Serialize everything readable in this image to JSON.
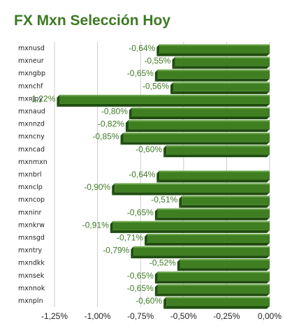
{
  "chart_data": {
    "type": "bar",
    "orientation": "horizontal",
    "title": "FX Mxn Selección Hoy",
    "categories": [
      "mxnusd",
      "mxneur",
      "mxngbp",
      "mxnchf",
      "mxnjpy",
      "mxnaud",
      "mxnnzd",
      "mxncny",
      "mxncad",
      "mxnmxn",
      "mxnbrl",
      "mxnclp",
      "mxncop",
      "mxninr",
      "mxnkrw",
      "mxnsgd",
      "mxntry",
      "mxndkk",
      "mxnsek",
      "mxnnok",
      "mxnpln"
    ],
    "values": [
      -0.64,
      -0.55,
      -0.65,
      -0.56,
      -1.22,
      -0.8,
      -0.82,
      -0.85,
      -0.6,
      null,
      -0.64,
      -0.9,
      -0.51,
      -0.65,
      -0.91,
      -0.71,
      -0.79,
      -0.52,
      -0.65,
      -0.65,
      -0.6
    ],
    "data_labels": [
      "-0,64%",
      "-0,55%",
      "-0,65%",
      "-0,56%",
      "-1,22%",
      "-0,80%",
      "-0,82%",
      "-0,85%",
      "-0,60%",
      "",
      "-0,64%",
      "-0,90%",
      "-0,51%",
      "-0,65%",
      "-0,91%",
      "-0,71%",
      "-0,79%",
      "-0,52%",
      "-0,65%",
      "-0,65%",
      "-0,60%"
    ],
    "xlim": [
      -1.25,
      0
    ],
    "xticks": [
      -1.25,
      -1.0,
      -0.75,
      -0.5,
      -0.25,
      0
    ],
    "xtick_labels": [
      "-1,25%",
      "-1,00%",
      "-0,75%",
      "-0,50%",
      "-0,25%",
      "0,00%"
    ],
    "grid": true,
    "colors": {
      "bar": "#3f7f22",
      "bar_top": "#6aa64a",
      "bar_side": "#1f4d0f",
      "label": "#3d7a23",
      "grid": "#cccccc"
    }
  }
}
